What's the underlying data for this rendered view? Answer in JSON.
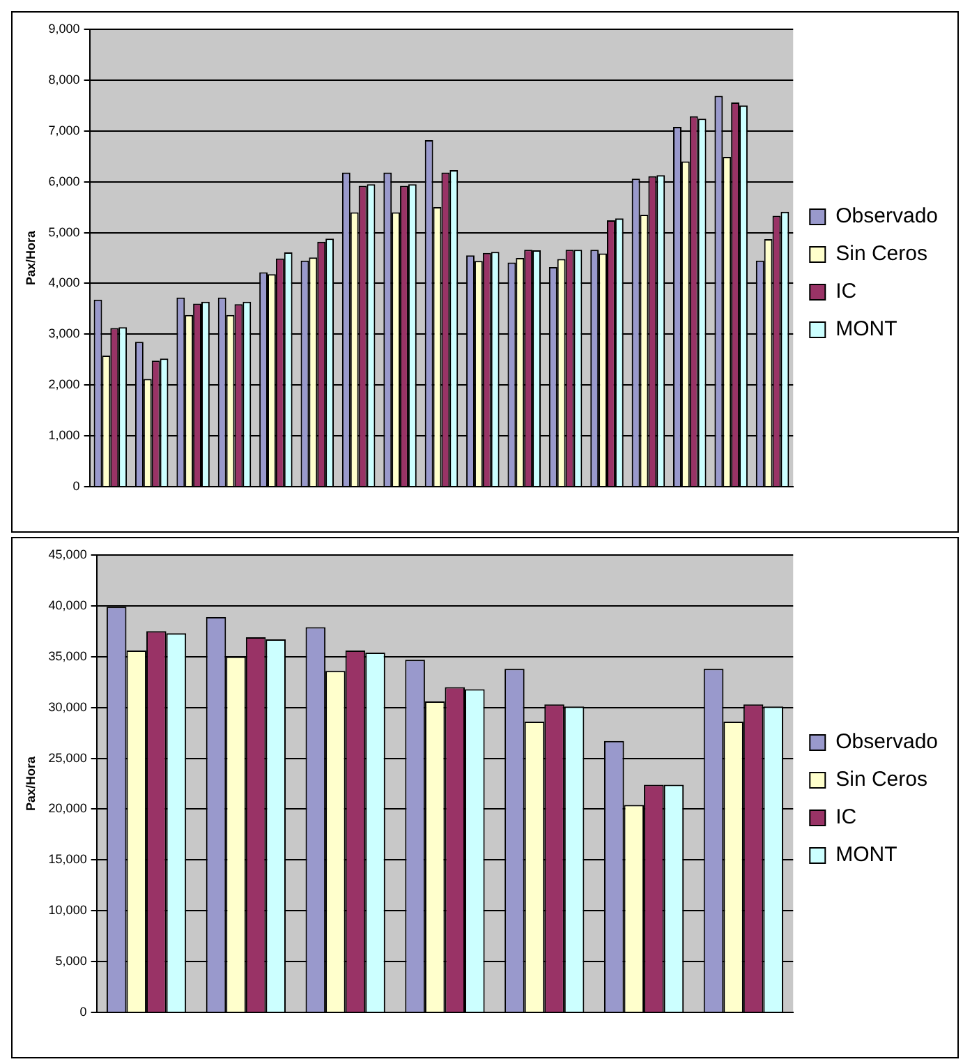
{
  "chart_data": [
    {
      "type": "bar",
      "ylabel": "Pax/Hora",
      "categories": [
        null,
        null,
        null,
        null,
        null,
        null,
        null,
        null,
        null,
        null,
        null,
        null,
        null,
        null,
        null,
        null,
        null
      ],
      "series": [
        {
          "name": "Observado",
          "color": "#9999cc",
          "values": [
            3680,
            2850,
            3720,
            3720,
            4220,
            4450,
            6180,
            6180,
            6820,
            4550,
            4410,
            4320,
            4660,
            6060,
            7080,
            7690,
            4450
          ]
        },
        {
          "name": "Sin Ceros",
          "color": "#ffffcc",
          "values": [
            2580,
            2120,
            3380,
            3380,
            4180,
            4510,
            5400,
            5400,
            5500,
            4440,
            4500,
            4480,
            4590,
            5350,
            6400,
            6490,
            4870
          ]
        },
        {
          "name": "IC",
          "color": "#993366",
          "values": [
            3120,
            2480,
            3600,
            3590,
            4490,
            4820,
            5920,
            5920,
            6180,
            4600,
            4660,
            4660,
            5240,
            6110,
            7290,
            7560,
            5330
          ]
        },
        {
          "name": "MONT",
          "color": "#ccffff",
          "values": [
            3140,
            2520,
            3640,
            3640,
            4610,
            4880,
            5950,
            5950,
            6230,
            4620,
            4650,
            4660,
            5280,
            6130,
            7240,
            7500,
            5410
          ]
        }
      ],
      "ylim": [
        0,
        9000
      ],
      "yticks": [
        0,
        {
          "value": 1000,
          "label": "1,000"
        },
        {
          "value": 2000,
          "label": "2,000"
        },
        {
          "value": 3000,
          "label": "3,000"
        },
        {
          "value": 4000,
          "label": "4,000"
        },
        {
          "value": 5000,
          "label": "5,000"
        },
        {
          "value": 6000,
          "label": "6,000"
        },
        {
          "value": 7000,
          "label": "7,000"
        },
        {
          "value": 8000,
          "label": "8,000"
        },
        {
          "value": 9000,
          "label": "9,000"
        }
      ],
      "grid": "y",
      "legend": "right"
    },
    {
      "type": "bar",
      "ylabel": "Pax/Hora",
      "categories": [
        null,
        null,
        null,
        null,
        null,
        null,
        null
      ],
      "series": [
        {
          "name": "Observado",
          "color": "#9999cc",
          "values": [
            39900,
            38900,
            37900,
            34700,
            33800,
            26700,
            33800
          ]
        },
        {
          "name": "Sin Ceros",
          "color": "#ffffcc",
          "values": [
            35600,
            35000,
            33600,
            30600,
            28600,
            20400,
            28600
          ]
        },
        {
          "name": "IC",
          "color": "#993366",
          "values": [
            37500,
            36900,
            35600,
            32000,
            30300,
            22400,
            30300
          ]
        },
        {
          "name": "MONT",
          "color": "#ccffff",
          "values": [
            37300,
            36700,
            35400,
            31800,
            30100,
            22400,
            30100
          ]
        }
      ],
      "ylim": [
        0,
        45000
      ],
      "yticks": [
        0,
        {
          "value": 5000,
          "label": "5,000"
        },
        {
          "value": 10000,
          "label": "10,000"
        },
        {
          "value": 15000,
          "label": "15,000"
        },
        {
          "value": 20000,
          "label": "20,000"
        },
        {
          "value": 25000,
          "label": "25,000"
        },
        {
          "value": 30000,
          "label": "30,000"
        },
        {
          "value": 35000,
          "label": "35,000"
        },
        {
          "value": 40000,
          "label": "40,000"
        },
        {
          "value": 45000,
          "label": "45,000"
        }
      ],
      "grid": "y",
      "legend": "right"
    }
  ]
}
